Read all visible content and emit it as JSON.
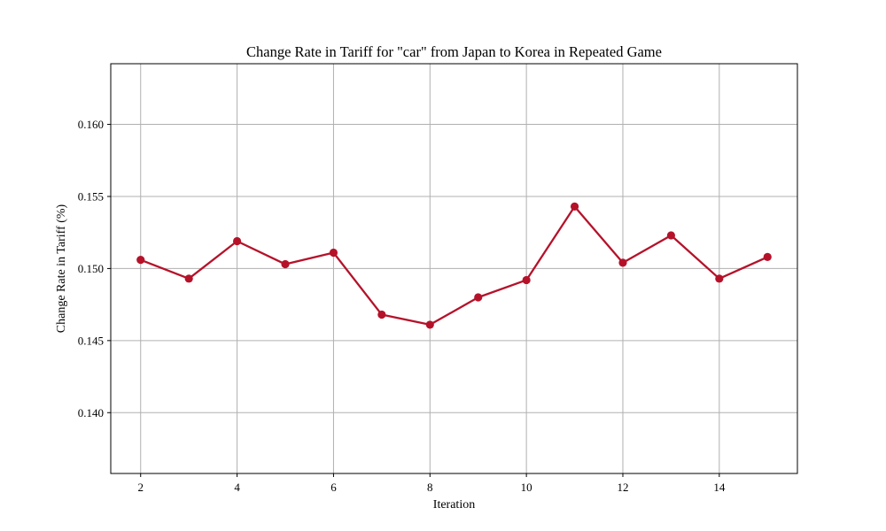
{
  "chart_data": {
    "type": "line",
    "title": "Change Rate in Tariff for \"car\" from Japan to Korea in Repeated Game",
    "xlabel": "Iteration",
    "ylabel": "Change Rate in Tariff (%)",
    "xlim": [
      1.38,
      15.62
    ],
    "ylim": [
      0.13578,
      0.16421
    ],
    "xticks": [
      2,
      4,
      6,
      8,
      10,
      12,
      14
    ],
    "xtick_labels": [
      "2",
      "4",
      "6",
      "8",
      "10",
      "12",
      "14"
    ],
    "yticks": [
      0.14,
      0.145,
      0.15,
      0.155,
      0.16
    ],
    "ytick_labels": [
      "0.140",
      "0.145",
      "0.150",
      "0.155",
      "0.160"
    ],
    "grid": true,
    "legend": "none",
    "series": [
      {
        "color": "#b5122a",
        "marker": "circle",
        "x": [
          2,
          3,
          4,
          5,
          6,
          7,
          8,
          9,
          10,
          11,
          12,
          13,
          14,
          15
        ],
        "values": [
          0.1506,
          0.1493,
          0.1519,
          0.1503,
          0.1511,
          0.1468,
          0.1461,
          0.148,
          0.1492,
          0.1543,
          0.1504,
          0.1523,
          0.1493,
          0.1508
        ]
      }
    ]
  }
}
